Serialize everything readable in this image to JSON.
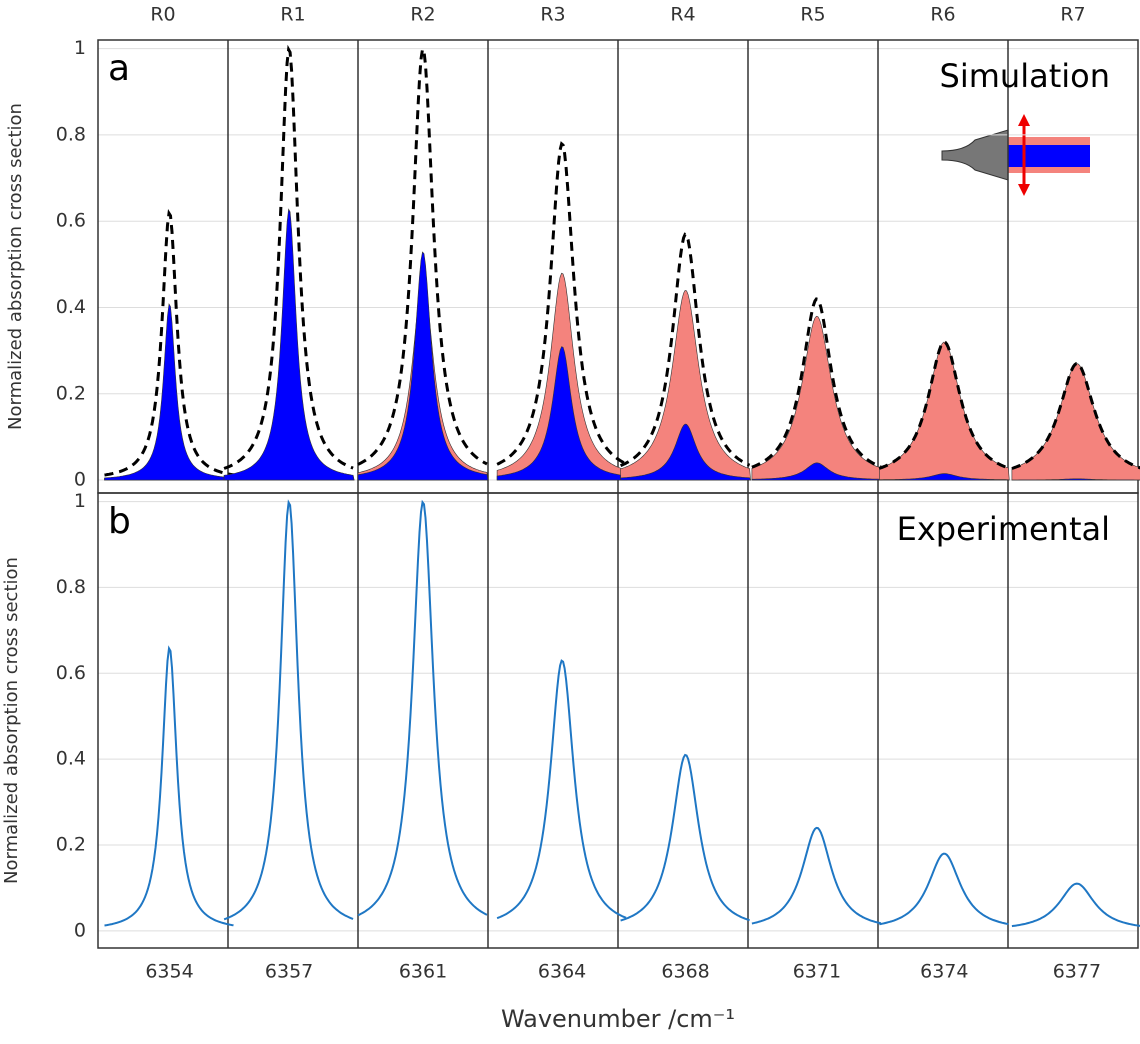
{
  "chart_data": [
    {
      "type": "area",
      "panel_label": "a",
      "annotation": "Simulation",
      "ylabel": "Normalized absorption cross section",
      "categories": [
        "R0",
        "R1",
        "R2",
        "R3",
        "R4",
        "R5",
        "R6",
        "R7"
      ],
      "series": [
        {
          "color": "#f4837d",
          "values": [
            0.2,
            0.37,
            0.47,
            0.48,
            0.44,
            0.38,
            0.32,
            0.27
          ]
        },
        {
          "color": "#0000ff",
          "values": [
            0.41,
            0.63,
            0.53,
            0.31,
            0.13,
            0.04,
            0.015,
            0.003
          ]
        },
        {
          "color": "#000000",
          "dashed": true,
          "values": [
            0.62,
            1.0,
            1.0,
            0.78,
            0.57,
            0.42,
            0.32,
            0.27
          ]
        }
      ],
      "ylim": [
        -0.03,
        1.02
      ],
      "yticks": [
        0,
        0.2,
        0.4,
        0.6,
        0.8,
        1
      ],
      "grid": true
    },
    {
      "type": "line",
      "panel_label": "b",
      "annotation": "Experimental",
      "ylabel": "Normalized absorption cross section",
      "xlabel": "Wavenumber /cm⁻¹",
      "categories": [
        6354,
        6357,
        6361,
        6364,
        6368,
        6371,
        6374,
        6377
      ],
      "series": [
        {
          "color": "#1f77c4",
          "values": [
            0.66,
            1.0,
            1.0,
            0.63,
            0.41,
            0.24,
            0.18,
            0.11
          ]
        }
      ],
      "ylim": [
        -0.04,
        1.02
      ],
      "yticks": [
        0,
        0.2,
        0.4,
        0.6,
        0.8,
        1
      ],
      "grid": true
    }
  ]
}
